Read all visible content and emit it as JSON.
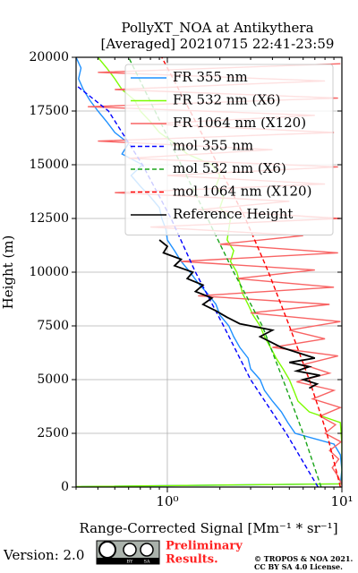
{
  "chart_data": {
    "type": "line",
    "title": [
      "PollyXT_NOA at Antikythera",
      "[Averaged] 20210715 22:41-23:59"
    ],
    "x_label": "Range-Corrected Signal [Mm⁻¹ * sr⁻¹]",
    "y_label": "Height (m)",
    "xscale": "log",
    "grid": true,
    "legend": "upper right",
    "xlim": [
      0.3,
      10
    ],
    "ylim": [
      0,
      20000
    ],
    "xticks": [
      {
        "value": 1,
        "label": "10⁰"
      },
      {
        "value": 10,
        "label": "10¹"
      }
    ],
    "xminorticks": [
      0.3,
      0.4,
      0.5,
      0.6,
      0.7,
      0.8,
      0.9,
      2,
      3,
      4,
      5,
      6,
      7,
      8,
      9
    ],
    "yticks": [
      0,
      2500,
      5000,
      7500,
      10000,
      12500,
      15000,
      17500,
      20000
    ],
    "series": [
      {
        "name": "FR 355 nm",
        "color": "#1e90ff",
        "dashed": false,
        "y": [
          20,
          150,
          800,
          1500,
          2000,
          2500,
          3000,
          3500,
          4000,
          4500,
          5000,
          5500,
          6000,
          6500,
          7000,
          7500,
          8000,
          8500,
          9000,
          9500,
          10000,
          10500,
          11000,
          11500,
          12000,
          12500,
          13000,
          13500,
          14000,
          14500,
          15000,
          15500,
          16000,
          16500,
          17000,
          17500,
          18000,
          18500,
          19000,
          19500,
          20000
        ],
        "x": [
          0.32,
          9.8,
          10,
          9.8,
          9.0,
          5.4,
          4.9,
          4.5,
          4.0,
          3.6,
          3.4,
          3.0,
          2.9,
          2.6,
          2.4,
          2.25,
          2.0,
          1.9,
          1.7,
          1.5,
          1.35,
          1.2,
          1.1,
          1.0,
          0.98,
          0.93,
          0.9,
          0.8,
          0.7,
          0.62,
          0.72,
          0.55,
          0.6,
          0.5,
          0.45,
          0.4,
          0.36,
          0.33,
          0.31,
          0.32,
          0.3
        ]
      },
      {
        "name": "FR 532 nm (X6)",
        "color": "#7cfc00",
        "dashed": false,
        "y": [
          20,
          150,
          1000,
          2000,
          3000,
          3500,
          4000,
          4500,
          5000,
          5500,
          6000,
          6500,
          7000,
          7500,
          8000,
          8500,
          9000,
          9500,
          10000,
          10500,
          11000,
          11500,
          12000,
          12500,
          13000,
          13500,
          14000,
          14500,
          15000,
          15500,
          16000,
          16500,
          17000,
          17500,
          18000,
          18500,
          19000,
          19500,
          20000
        ],
        "x": [
          0.3,
          10,
          10,
          10,
          9.8,
          6.5,
          5.6,
          5.3,
          5.0,
          4.6,
          4.2,
          3.9,
          3.6,
          3.4,
          3.1,
          2.9,
          2.7,
          2.6,
          2.5,
          2.3,
          2.4,
          2.2,
          2.25,
          2.3,
          2.0,
          2.1,
          1.9,
          2.0,
          1.8,
          1.3,
          1.1,
          0.9,
          0.8,
          0.7,
          0.65,
          0.55,
          0.5,
          0.45,
          0.4
        ]
      },
      {
        "name": "FR 1064 nm (X120)",
        "color": "#f86464",
        "dashed": false,
        "y": [
          100,
          500,
          900,
          1300,
          1700,
          2100,
          2500,
          2900,
          3300,
          3700,
          4100,
          4500,
          4900,
          5300,
          5700,
          6100,
          6500,
          6900,
          7300,
          7700,
          8100,
          8500,
          8900,
          9300,
          9700,
          10100,
          10500,
          10900,
          11300,
          11700,
          12100,
          12500,
          12900,
          13300,
          13700,
          14100,
          14500,
          14900,
          15300,
          15700,
          16100,
          16500,
          16900,
          17300,
          17700,
          18100,
          18500,
          18900,
          19300,
          19700
        ],
        "x": [
          10,
          9.5,
          8.8,
          9.6,
          8.5,
          9.9,
          8.0,
          9.2,
          7.5,
          9.8,
          6.8,
          9.0,
          5.5,
          8.5,
          6.0,
          9.5,
          4.0,
          8.0,
          5.0,
          9.8,
          3.0,
          8.5,
          1.5,
          9.0,
          2.5,
          7.0,
          1.2,
          9.5,
          2.0,
          6.0,
          0.8,
          9.8,
          1.5,
          5.0,
          0.5,
          8.0,
          1.0,
          9.5,
          0.6,
          4.0,
          0.4,
          9.0,
          0.8,
          7.0,
          0.35,
          9.5,
          0.5,
          8.0,
          0.4,
          9.8
        ]
      },
      {
        "name": "mol 355 nm",
        "color": "#0000ff",
        "dashed": true,
        "y": [
          0,
          2500,
          5000,
          7500,
          10000,
          12500,
          15000,
          17500,
          18700
        ],
        "x": [
          7.3,
          4.8,
          3.0,
          2.1,
          1.45,
          1.05,
          0.72,
          0.46,
          0.3
        ]
      },
      {
        "name": "mol 532 nm (X6)",
        "color": "#1aa51a",
        "dashed": true,
        "y": [
          0,
          2500,
          5000,
          7500,
          10000,
          12500,
          15000,
          17500,
          20000
        ],
        "x": [
          7.6,
          6.0,
          4.6,
          3.5,
          2.4,
          1.7,
          1.2,
          0.85,
          0.6
        ]
      },
      {
        "name": "mol 1064 nm (X120)",
        "color": "#ff0000",
        "dashed": true,
        "y": [
          0,
          2500,
          5000,
          7500,
          10000,
          12500,
          15000,
          17500,
          20000
        ],
        "x": [
          9.8,
          8.2,
          6.5,
          5.0,
          3.8,
          2.8,
          1.95,
          1.35,
          0.93
        ]
      },
      {
        "name": "Reference Height",
        "color": "#000000",
        "dashed": false,
        "y": [
          4600,
          4800,
          5000,
          5200,
          5400,
          5600,
          5800,
          6000,
          6500,
          7000,
          7300,
          7600,
          7900,
          8200,
          8500,
          8800,
          9100,
          9400,
          9700,
          10000,
          10300,
          10600,
          10900,
          11200,
          11500
        ],
        "x": [
          6.5,
          7.2,
          6.0,
          7.5,
          5.5,
          6.5,
          5.0,
          7.0,
          4.5,
          3.4,
          4.0,
          2.6,
          2.2,
          1.9,
          1.6,
          1.8,
          1.45,
          1.6,
          1.3,
          1.4,
          1.1,
          1.2,
          0.95,
          1.0,
          0.9
        ]
      }
    ]
  },
  "footer": {
    "version": "Version: 2.0",
    "badge": [
      "BY",
      "SA"
    ],
    "notice": [
      "Preliminary",
      "Results."
    ],
    "copyright": [
      "© TROPOS & NOA 2021.",
      "CC BY SA 4.0 License."
    ]
  }
}
